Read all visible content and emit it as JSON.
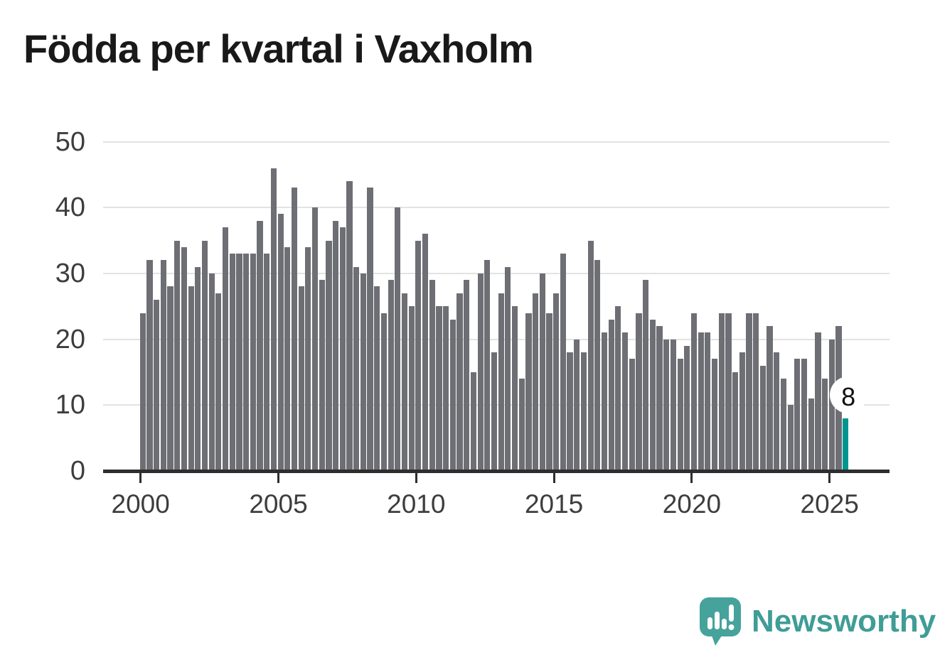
{
  "title": "Födda per kvartal i Vaxholm",
  "branding": {
    "name": "Newsworthy"
  },
  "colors": {
    "bar": "#6e6e75",
    "highlight": "#00968f",
    "gridline": "#e3e3e3",
    "axis": "#2e2e2e",
    "title_text": "#191919",
    "axis_text": "#3d3d3d",
    "logo_teal": "#45a39c",
    "logo_text_teal": "#3f9d96"
  },
  "chart_data": {
    "type": "bar",
    "title": "Födda per kvartal i Vaxholm",
    "x_start_year": 2000,
    "periods_per_year": 4,
    "xlabel": "",
    "ylabel": "",
    "ylim": [
      0,
      50
    ],
    "yticks": [
      0,
      10,
      20,
      30,
      40,
      50
    ],
    "x_tick_labels": [
      "2000",
      "2005",
      "2010",
      "2015",
      "2020",
      "2025"
    ],
    "grid": true,
    "values": [
      24,
      32,
      26,
      32,
      28,
      35,
      34,
      28,
      31,
      35,
      30,
      27,
      37,
      33,
      33,
      33,
      33,
      38,
      33,
      46,
      39,
      34,
      43,
      28,
      34,
      40,
      29,
      35,
      38,
      37,
      44,
      31,
      30,
      43,
      28,
      24,
      29,
      40,
      27,
      25,
      35,
      36,
      29,
      25,
      25,
      23,
      27,
      29,
      15,
      30,
      32,
      18,
      27,
      31,
      25,
      14,
      24,
      27,
      30,
      24,
      27,
      33,
      18,
      20,
      18,
      35,
      32,
      21,
      23,
      25,
      21,
      17,
      24,
      29,
      23,
      22,
      20,
      20,
      17,
      19,
      24,
      21,
      21,
      17,
      24,
      24,
      15,
      18,
      24,
      24,
      16,
      22,
      18,
      14,
      10,
      17,
      17,
      11,
      21,
      14,
      20,
      22,
      8
    ],
    "highlight": {
      "index": 102,
      "label": "8"
    }
  }
}
